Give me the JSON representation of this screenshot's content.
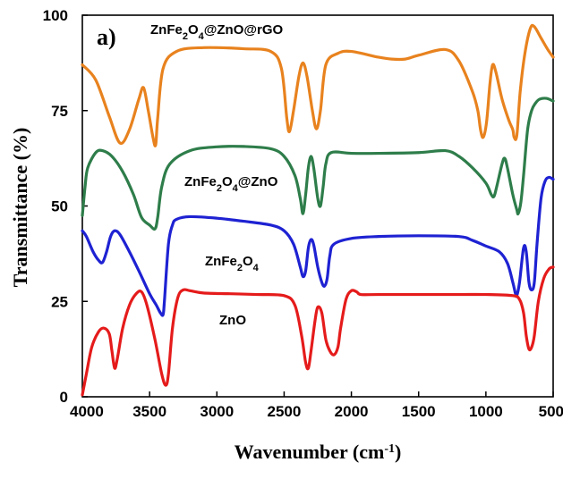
{
  "chart_data": {
    "type": "line",
    "panel_label": "a)",
    "xlabel": "Wavenumber (cm⁻¹)",
    "ylabel": "Transmittance (%)",
    "xlim": [
      4000,
      500
    ],
    "x_reversed": true,
    "ylim": [
      0,
      100
    ],
    "x_ticks": [
      4000,
      3500,
      3000,
      2500,
      2000,
      1500,
      1000,
      500
    ],
    "y_ticks": [
      0,
      25,
      50,
      75,
      100
    ],
    "grid": false,
    "legend": "none (series labeled inline)",
    "series": [
      {
        "name": "ZnFe₂O₄@ZnO@rGO",
        "color": "#E8821E",
        "points": [
          [
            4000,
            87
          ],
          [
            3900,
            83
          ],
          [
            3800,
            73.5
          ],
          [
            3720,
            66.5
          ],
          [
            3650,
            70
          ],
          [
            3580,
            78
          ],
          [
            3545,
            81
          ],
          [
            3510,
            75
          ],
          [
            3475,
            68
          ],
          [
            3455,
            66
          ],
          [
            3440,
            73
          ],
          [
            3400,
            86
          ],
          [
            3300,
            90.5
          ],
          [
            3100,
            91.5
          ],
          [
            2800,
            91.2
          ],
          [
            2600,
            90.5
          ],
          [
            2520,
            86
          ],
          [
            2480,
            73
          ],
          [
            2460,
            69.5
          ],
          [
            2430,
            75
          ],
          [
            2390,
            84
          ],
          [
            2360,
            87.5
          ],
          [
            2330,
            84
          ],
          [
            2290,
            75
          ],
          [
            2260,
            70.2
          ],
          [
            2230,
            75
          ],
          [
            2190,
            87
          ],
          [
            2100,
            90
          ],
          [
            2000,
            90.5
          ],
          [
            1800,
            89
          ],
          [
            1700,
            88.5
          ],
          [
            1600,
            88.5
          ],
          [
            1500,
            89.5
          ],
          [
            1300,
            91
          ],
          [
            1200,
            88
          ],
          [
            1100,
            80
          ],
          [
            1060,
            75
          ],
          [
            1040,
            70
          ],
          [
            1020,
            68
          ],
          [
            995,
            72
          ],
          [
            970,
            82
          ],
          [
            950,
            87
          ],
          [
            925,
            85
          ],
          [
            880,
            78
          ],
          [
            830,
            72.5
          ],
          [
            800,
            70
          ],
          [
            790,
            68
          ],
          [
            770,
            68.5
          ],
          [
            745,
            80
          ],
          [
            710,
            90
          ],
          [
            670,
            96.5
          ],
          [
            640,
            97
          ],
          [
            590,
            94
          ],
          [
            540,
            91
          ],
          [
            500,
            89
          ]
        ]
      },
      {
        "name": "ZnFe₂O₄@ZnO",
        "color": "#2E7D4A",
        "points": [
          [
            4000,
            47.5
          ],
          [
            3980,
            55
          ],
          [
            3960,
            60
          ],
          [
            3900,
            64
          ],
          [
            3850,
            64.5
          ],
          [
            3780,
            63
          ],
          [
            3700,
            59
          ],
          [
            3620,
            53
          ],
          [
            3560,
            47
          ],
          [
            3500,
            45
          ],
          [
            3460,
            44
          ],
          [
            3440,
            47
          ],
          [
            3410,
            55
          ],
          [
            3350,
            61
          ],
          [
            3200,
            64.5
          ],
          [
            3000,
            65.5
          ],
          [
            2800,
            65.6
          ],
          [
            2600,
            65
          ],
          [
            2500,
            63
          ],
          [
            2420,
            58
          ],
          [
            2380,
            52
          ],
          [
            2360,
            48
          ],
          [
            2340,
            53
          ],
          [
            2320,
            60
          ],
          [
            2300,
            63
          ],
          [
            2280,
            60
          ],
          [
            2250,
            52
          ],
          [
            2230,
            50
          ],
          [
            2210,
            55
          ],
          [
            2190,
            61
          ],
          [
            2150,
            64
          ],
          [
            2000,
            63.8
          ],
          [
            1800,
            63.8
          ],
          [
            1500,
            64
          ],
          [
            1300,
            64.5
          ],
          [
            1200,
            63
          ],
          [
            1100,
            60
          ],
          [
            1000,
            56
          ],
          [
            960,
            53
          ],
          [
            940,
            52.5
          ],
          [
            920,
            55
          ],
          [
            880,
            61
          ],
          [
            860,
            62.5
          ],
          [
            840,
            60
          ],
          [
            800,
            53
          ],
          [
            770,
            49
          ],
          [
            760,
            48
          ],
          [
            740,
            51
          ],
          [
            720,
            58
          ],
          [
            690,
            70
          ],
          [
            660,
            75
          ],
          [
            630,
            77
          ],
          [
            600,
            78
          ],
          [
            550,
            78.2
          ],
          [
            500,
            77.5
          ]
        ]
      },
      {
        "name": "ZnFe₂O₄",
        "color": "#1E22D2",
        "points": [
          [
            4000,
            43.5
          ],
          [
            3970,
            42
          ],
          [
            3920,
            38
          ],
          [
            3880,
            35.8
          ],
          [
            3850,
            35.2
          ],
          [
            3820,
            38
          ],
          [
            3790,
            42
          ],
          [
            3760,
            43.5
          ],
          [
            3720,
            42.5
          ],
          [
            3650,
            38
          ],
          [
            3580,
            33
          ],
          [
            3500,
            27
          ],
          [
            3450,
            24
          ],
          [
            3420,
            22
          ],
          [
            3400,
            21.5
          ],
          [
            3390,
            25
          ],
          [
            3360,
            40
          ],
          [
            3330,
            45
          ],
          [
            3300,
            46.5
          ],
          [
            3200,
            47.2
          ],
          [
            3000,
            46.8
          ],
          [
            2800,
            46
          ],
          [
            2600,
            45
          ],
          [
            2500,
            43.5
          ],
          [
            2430,
            40
          ],
          [
            2380,
            34
          ],
          [
            2360,
            31.5
          ],
          [
            2340,
            33
          ],
          [
            2320,
            39
          ],
          [
            2300,
            41.2
          ],
          [
            2280,
            39.8
          ],
          [
            2250,
            34
          ],
          [
            2220,
            30
          ],
          [
            2200,
            29
          ],
          [
            2180,
            31
          ],
          [
            2160,
            37
          ],
          [
            2130,
            40
          ],
          [
            2000,
            41.5
          ],
          [
            1800,
            42
          ],
          [
            1500,
            42.2
          ],
          [
            1200,
            42
          ],
          [
            1100,
            41
          ],
          [
            1000,
            39.5
          ],
          [
            900,
            38
          ],
          [
            840,
            35
          ],
          [
            800,
            30
          ],
          [
            780,
            27
          ],
          [
            770,
            26.5
          ],
          [
            750,
            30
          ],
          [
            720,
            39
          ],
          [
            700,
            38
          ],
          [
            680,
            30
          ],
          [
            660,
            28
          ],
          [
            640,
            30
          ],
          [
            620,
            40
          ],
          [
            590,
            52
          ],
          [
            560,
            56.5
          ],
          [
            530,
            57.5
          ],
          [
            500,
            57
          ]
        ]
      },
      {
        "name": "ZnO",
        "color": "#E51B1B",
        "points": [
          [
            4000,
            0.5
          ],
          [
            3970,
            6
          ],
          [
            3930,
            13
          ],
          [
            3880,
            17
          ],
          [
            3840,
            18
          ],
          [
            3800,
            16.5
          ],
          [
            3780,
            12
          ],
          [
            3760,
            7.5
          ],
          [
            3740,
            10
          ],
          [
            3700,
            18
          ],
          [
            3650,
            24
          ],
          [
            3600,
            27
          ],
          [
            3560,
            27.5
          ],
          [
            3520,
            24
          ],
          [
            3460,
            15
          ],
          [
            3410,
            6
          ],
          [
            3380,
            3
          ],
          [
            3360,
            6
          ],
          [
            3330,
            18
          ],
          [
            3290,
            26
          ],
          [
            3250,
            28
          ],
          [
            3200,
            27.8
          ],
          [
            3100,
            27.2
          ],
          [
            2900,
            27
          ],
          [
            2700,
            26.8
          ],
          [
            2500,
            26.5
          ],
          [
            2420,
            24
          ],
          [
            2370,
            16
          ],
          [
            2340,
            9
          ],
          [
            2320,
            7.5
          ],
          [
            2300,
            12
          ],
          [
            2270,
            20
          ],
          [
            2250,
            23.5
          ],
          [
            2220,
            22
          ],
          [
            2190,
            15
          ],
          [
            2160,
            12
          ],
          [
            2130,
            11
          ],
          [
            2100,
            13
          ],
          [
            2080,
            18
          ],
          [
            2040,
            25.5
          ],
          [
            2000,
            27.8
          ],
          [
            1960,
            27.5
          ],
          [
            1930,
            26.8
          ],
          [
            1800,
            26.8
          ],
          [
            1500,
            26.8
          ],
          [
            1200,
            26.8
          ],
          [
            1000,
            26.8
          ],
          [
            800,
            26.5
          ],
          [
            750,
            25.5
          ],
          [
            720,
            22
          ],
          [
            700,
            16
          ],
          [
            680,
            12.5
          ],
          [
            660,
            13
          ],
          [
            640,
            16
          ],
          [
            610,
            25
          ],
          [
            570,
            31
          ],
          [
            530,
            33.5
          ],
          [
            500,
            34
          ]
        ]
      }
    ],
    "series_label_text": [
      {
        "key": "rgo",
        "text": "ZnFe2O4@ZnO@rGO"
      },
      {
        "key": "zno_comp",
        "text": "ZnFe2O4@ZnO"
      },
      {
        "key": "znfe",
        "text": "ZnFe2O4"
      },
      {
        "key": "zno",
        "text": "ZnO"
      }
    ]
  }
}
